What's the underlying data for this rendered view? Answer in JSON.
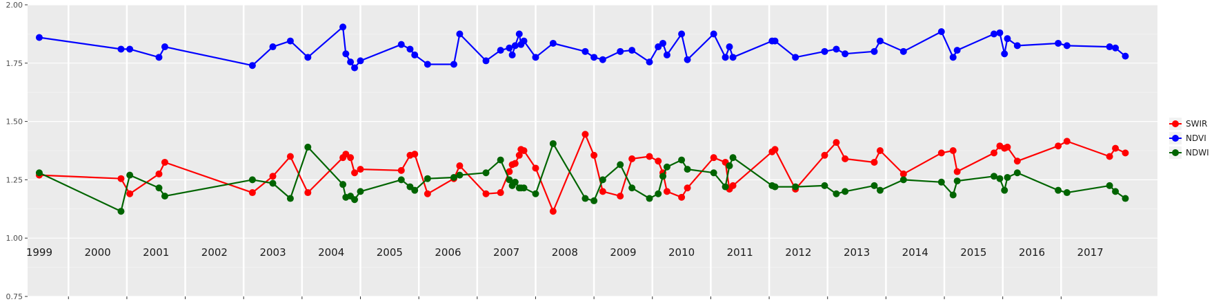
{
  "chart_data": {
    "type": "line",
    "title": "",
    "xlabel": "",
    "ylabel": "",
    "xlim": [
      1998.8,
      2018.15
    ],
    "ylim": [
      0.75,
      2.0
    ],
    "y_ticks": [
      "0.75",
      "1.00",
      "1.25",
      "1.50",
      "1.75",
      "2.00"
    ],
    "y_tick_values": [
      0.75,
      1.0,
      1.25,
      1.5,
      1.75,
      2.0
    ],
    "x_ticks": [
      "1999",
      "2000",
      "2001",
      "2002",
      "2003",
      "2004",
      "2005",
      "2006",
      "2007",
      "2008",
      "2009",
      "2010",
      "2011",
      "2012",
      "2013",
      "2014",
      "2015",
      "2016",
      "2017"
    ],
    "x_tick_values": [
      1999,
      2000,
      2001,
      2002,
      2003,
      2004,
      2005,
      2006,
      2007,
      2008,
      2009,
      2010,
      2011,
      2012,
      2013,
      2014,
      2015,
      2016,
      2017
    ],
    "grid": true,
    "legend_position": "right",
    "x": [
      1999.0,
      2000.4,
      2000.55,
      2001.05,
      2001.15,
      2002.65,
      2003.0,
      2003.3,
      2003.6,
      2004.2,
      2004.25,
      2004.33,
      2004.4,
      2004.5,
      2005.2,
      2005.35,
      2005.43,
      2005.65,
      2006.1,
      2006.2,
      2006.65,
      2006.9,
      2007.05,
      2007.1,
      2007.15,
      2007.22,
      2007.25,
      2007.3,
      2007.5,
      2007.8,
      2008.35,
      2008.5,
      2008.65,
      2008.95,
      2009.15,
      2009.45,
      2009.6,
      2009.68,
      2009.75,
      2010.0,
      2010.1,
      2010.55,
      2010.75,
      2010.82,
      2010.88,
      2011.55,
      2011.6,
      2011.95,
      2012.45,
      2012.65,
      2012.8,
      2013.3,
      2013.4,
      2013.8,
      2014.45,
      2014.65,
      2014.72,
      2015.35,
      2015.45,
      2015.53,
      2015.58,
      2015.75,
      2016.45,
      2016.6,
      2017.33,
      2017.43,
      2017.6
    ],
    "series": [
      {
        "name": "SWIR",
        "color": "#ff0000",
        "values": [
          1.27,
          1.255,
          1.19,
          1.275,
          1.325,
          1.195,
          1.265,
          1.35,
          1.195,
          1.345,
          1.36,
          1.345,
          1.28,
          1.295,
          1.29,
          1.355,
          1.36,
          1.19,
          1.255,
          1.31,
          1.19,
          1.195,
          1.285,
          1.315,
          1.32,
          1.355,
          1.38,
          1.375,
          1.3,
          1.115,
          1.445,
          1.355,
          1.2,
          1.18,
          1.34,
          1.35,
          1.33,
          1.28,
          1.2,
          1.175,
          1.215,
          1.345,
          1.325,
          1.21,
          1.225,
          1.37,
          1.38,
          1.21,
          1.355,
          1.41,
          1.34,
          1.325,
          1.375,
          1.275,
          1.365,
          1.375,
          1.285,
          1.365,
          1.395,
          1.385,
          1.39,
          1.33,
          1.395,
          1.415,
          1.35,
          1.385,
          1.365
        ]
      },
      {
        "name": "NDVI",
        "color": "#0000ff",
        "values": [
          1.86,
          1.81,
          1.81,
          1.775,
          1.82,
          1.74,
          1.82,
          1.845,
          1.775,
          1.905,
          1.79,
          1.755,
          1.73,
          1.76,
          1.83,
          1.81,
          1.785,
          1.745,
          1.745,
          1.875,
          1.76,
          1.805,
          1.815,
          1.785,
          1.825,
          1.875,
          1.83,
          1.845,
          1.775,
          1.835,
          1.8,
          1.775,
          1.765,
          1.8,
          1.805,
          1.755,
          1.82,
          1.835,
          1.785,
          1.875,
          1.765,
          1.875,
          1.775,
          1.82,
          1.775,
          1.845,
          1.845,
          1.775,
          1.8,
          1.81,
          1.79,
          1.8,
          1.845,
          1.8,
          1.885,
          1.775,
          1.805,
          1.875,
          1.88,
          1.79,
          1.855,
          1.825,
          1.835,
          1.825,
          1.82,
          1.815,
          1.78
        ]
      },
      {
        "name": "NDWI",
        "color": "#006400",
        "values": [
          1.28,
          1.115,
          1.27,
          1.215,
          1.18,
          1.25,
          1.235,
          1.17,
          1.39,
          1.23,
          1.175,
          1.18,
          1.165,
          1.2,
          1.25,
          1.22,
          1.205,
          1.255,
          1.26,
          1.27,
          1.28,
          1.335,
          1.25,
          1.225,
          1.24,
          1.215,
          1.215,
          1.215,
          1.19,
          1.405,
          1.17,
          1.16,
          1.25,
          1.315,
          1.215,
          1.17,
          1.19,
          1.265,
          1.305,
          1.335,
          1.295,
          1.28,
          1.22,
          1.31,
          1.345,
          1.225,
          1.22,
          1.22,
          1.225,
          1.19,
          1.2,
          1.225,
          1.205,
          1.25,
          1.24,
          1.185,
          1.245,
          1.265,
          1.255,
          1.205,
          1.26,
          1.28,
          1.205,
          1.195,
          1.225,
          1.2,
          1.17
        ]
      }
    ],
    "legend_order": [
      "SWIR",
      "NDVI",
      "NDWI"
    ]
  },
  "colors": {
    "panel_background": "#ebebeb",
    "grid_major": "#ffffff",
    "grid_minor": "#f7f7f7"
  }
}
